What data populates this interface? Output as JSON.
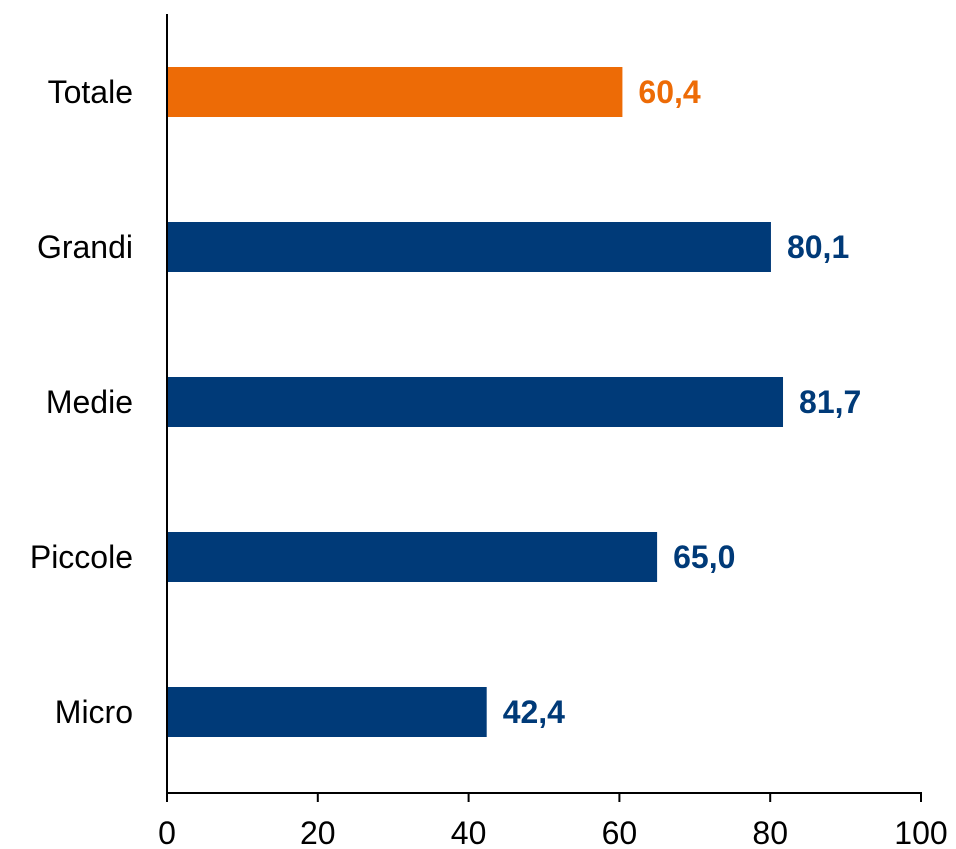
{
  "chart_data": {
    "type": "bar",
    "orientation": "horizontal",
    "categories": [
      "Totale",
      "Grandi",
      "Medie",
      "Piccole",
      "Micro"
    ],
    "values": [
      60.4,
      80.1,
      81.7,
      65.0,
      42.4
    ],
    "value_labels": [
      "60,4",
      "80,1",
      "81,7",
      "65,0",
      "42,4"
    ],
    "bar_colors": [
      "#ED6B06",
      "#003A78",
      "#003A78",
      "#003A78",
      "#003A78"
    ],
    "xlim": [
      0,
      100
    ],
    "xticks": [
      0,
      20,
      40,
      60,
      80,
      100
    ],
    "xtick_labels": [
      "0",
      "20",
      "40",
      "60",
      "80",
      "100"
    ],
    "grid": false,
    "legend": "none",
    "title": "",
    "xlabel": "",
    "ylabel": ""
  }
}
